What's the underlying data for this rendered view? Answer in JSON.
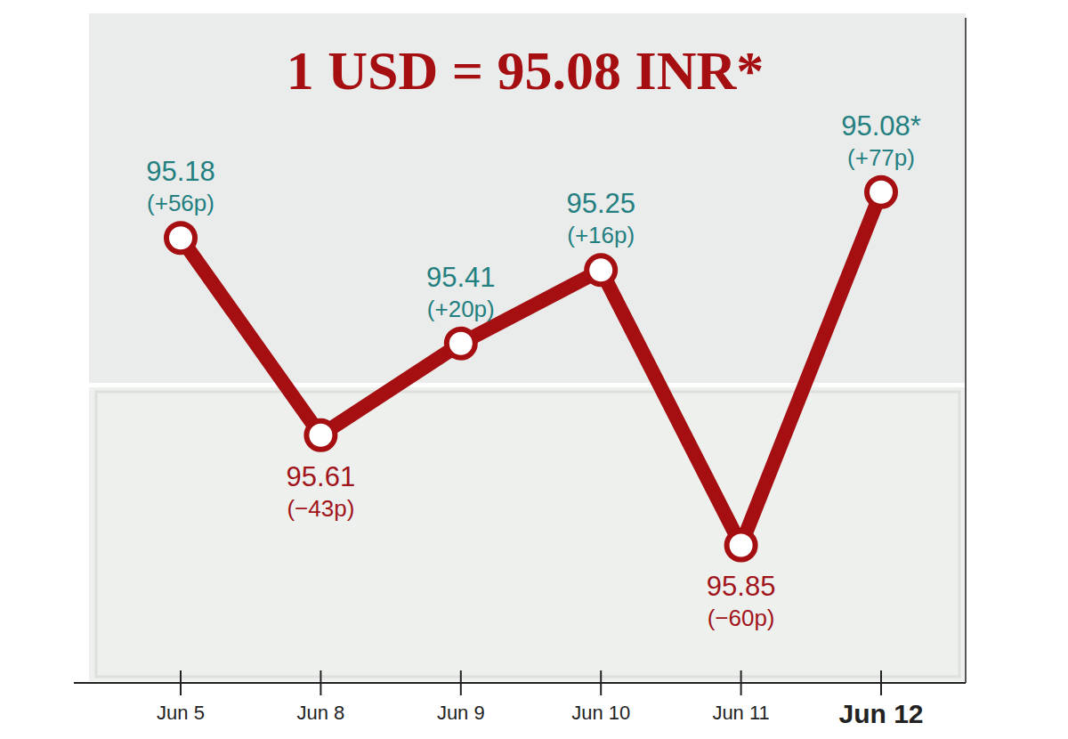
{
  "chart_data": {
    "type": "line",
    "title": "1 USD = 95.08 INR*",
    "categories": [
      "Jun 5",
      "Jun 8",
      "Jun 9",
      "Jun 10",
      "Jun 11",
      "Jun 12"
    ],
    "values": [
      95.18,
      95.61,
      95.41,
      95.25,
      95.85,
      95.08
    ],
    "value_labels": [
      "95.18",
      "95.61",
      "95.41",
      "95.25",
      "95.85",
      "95.08*"
    ],
    "annotations": [
      "(+56p)",
      "(−43p)",
      "(+20p)",
      "(+16p)",
      "(−60p)",
      "(+77p)"
    ],
    "colors": [
      "#237f80",
      "#a0141a",
      "#237f80",
      "#237f80",
      "#a0141a",
      "#237f80"
    ],
    "color": "#a50f12",
    "marker": "circle",
    "ylim": [
      96.15,
      94.7
    ],
    "yticks": [],
    "tick_labels": "x",
    "data_labels": true,
    "grid": false
  }
}
